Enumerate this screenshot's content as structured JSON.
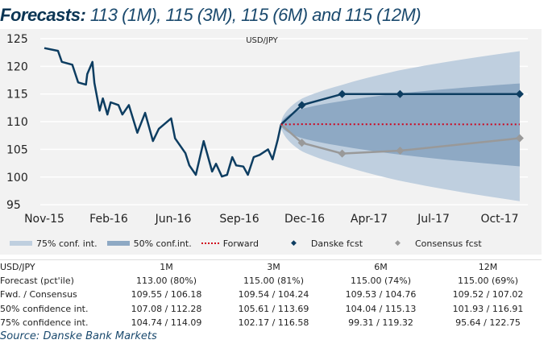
{
  "title": {
    "bold": "Forecasts:",
    "rest": " 113 (1M), 115 (3M), 115 (6M) and 115 (12M)"
  },
  "chart_data": {
    "type": "line",
    "title": "USD/JPY",
    "ylim": [
      95,
      125
    ],
    "yticks": [
      95,
      100,
      105,
      110,
      115,
      120,
      125
    ],
    "xticks": [
      "Nov-15",
      "Feb-16",
      "Jun-16",
      "Sep-16",
      "Dec-16",
      "Apr-17",
      "Jul-17",
      "Oct-17"
    ],
    "grid": true,
    "legend_placement": "bottom",
    "colors": {
      "history": "#0d3d61",
      "danske": "#0d3d61",
      "consensus": "#999999",
      "forward": "#d0021b",
      "band75": "#bfcfdf",
      "band50": "#8ea9c4"
    },
    "history": [
      [
        "2015-11-01",
        123.3
      ],
      [
        "2015-11-22",
        122.8
      ],
      [
        "2015-11-28",
        120.8
      ],
      [
        "2015-12-14",
        120.3
      ],
      [
        "2015-12-23",
        117.1
      ],
      [
        "2016-01-04",
        116.7
      ],
      [
        "2016-01-06",
        118.6
      ],
      [
        "2016-01-14",
        120.8
      ],
      [
        "2016-01-17",
        117.0
      ],
      [
        "2016-01-25",
        112.0
      ],
      [
        "2016-01-30",
        114.2
      ],
      [
        "2016-02-06",
        111.3
      ],
      [
        "2016-02-11",
        113.5
      ],
      [
        "2016-02-23",
        113.0
      ],
      [
        "2016-02-29",
        111.3
      ],
      [
        "2016-03-10",
        113.0
      ],
      [
        "2016-03-23",
        108.0
      ],
      [
        "2016-04-04",
        111.6
      ],
      [
        "2016-04-16",
        106.5
      ],
      [
        "2016-04-25",
        108.7
      ],
      [
        "2016-05-14",
        110.6
      ],
      [
        "2016-05-20",
        107.0
      ],
      [
        "2016-06-05",
        104.3
      ],
      [
        "2016-06-11",
        102.1
      ],
      [
        "2016-06-21",
        100.4
      ],
      [
        "2016-07-03",
        106.5
      ],
      [
        "2016-07-16",
        101.0
      ],
      [
        "2016-07-22",
        102.4
      ],
      [
        "2016-07-31",
        100.1
      ],
      [
        "2016-08-08",
        100.4
      ],
      [
        "2016-08-16",
        103.6
      ],
      [
        "2016-08-22",
        102.1
      ],
      [
        "2016-09-02",
        101.9
      ],
      [
        "2016-09-09",
        100.4
      ],
      [
        "2016-09-18",
        103.6
      ],
      [
        "2016-09-27",
        104.0
      ],
      [
        "2016-10-10",
        105.0
      ],
      [
        "2016-10-17",
        103.2
      ],
      [
        "2016-10-25",
        106.8
      ],
      [
        "2016-10-30",
        109.5
      ]
    ],
    "horizon_dates": [
      "2016-10-30",
      "2016-12-01",
      "2017-02-01",
      "2017-05-01",
      "2017-11-01"
    ],
    "series": [
      {
        "name": "Danske fcst",
        "values": [
          109.5,
          113.0,
          115.0,
          115.0,
          115.0
        ]
      },
      {
        "name": "Consensus fcst",
        "values": [
          109.5,
          106.18,
          104.24,
          104.76,
          107.02
        ]
      },
      {
        "name": "Forward",
        "values": [
          109.5,
          109.55,
          109.54,
          109.53,
          109.52
        ]
      }
    ],
    "bands": [
      {
        "name": "75% conf. int.",
        "lower": [
          109.5,
          104.74,
          102.17,
          99.31,
          95.64
        ],
        "upper": [
          109.5,
          114.09,
          116.58,
          119.32,
          122.75
        ]
      },
      {
        "name": "50% conf.int.",
        "lower": [
          109.5,
          107.08,
          105.61,
          104.04,
          101.93
        ],
        "upper": [
          109.5,
          112.28,
          113.69,
          115.13,
          116.91
        ]
      }
    ]
  },
  "legend": {
    "band75": "75% conf. int.",
    "band50": "50% conf.int.",
    "forward": "Forward",
    "danske": "Danske fcst",
    "consensus": "Consensus fcst"
  },
  "table": {
    "header": [
      "USD/JPY",
      "1M",
      "3M",
      "6M",
      "12M"
    ],
    "rows": [
      [
        "Forecast (pct'ile)",
        "113.00 (80%)",
        "115.00 (81%)",
        "115.00 (74%)",
        "115.00 (69%)"
      ],
      [
        "Fwd. / Consensus",
        "109.55 / 106.18",
        "109.54 / 104.24",
        "109.53 / 104.76",
        "109.52 / 107.02"
      ],
      [
        "50% confidence int.",
        "107.08 / 112.28",
        "105.61 / 113.69",
        "104.04 / 115.13",
        "101.93 / 116.91"
      ],
      [
        "75% confidence int.",
        "104.74 / 114.09",
        "102.17 / 116.58",
        "99.31 / 119.32",
        "95.64 / 122.75"
      ]
    ]
  },
  "source": "Source: Danske Bank Markets"
}
